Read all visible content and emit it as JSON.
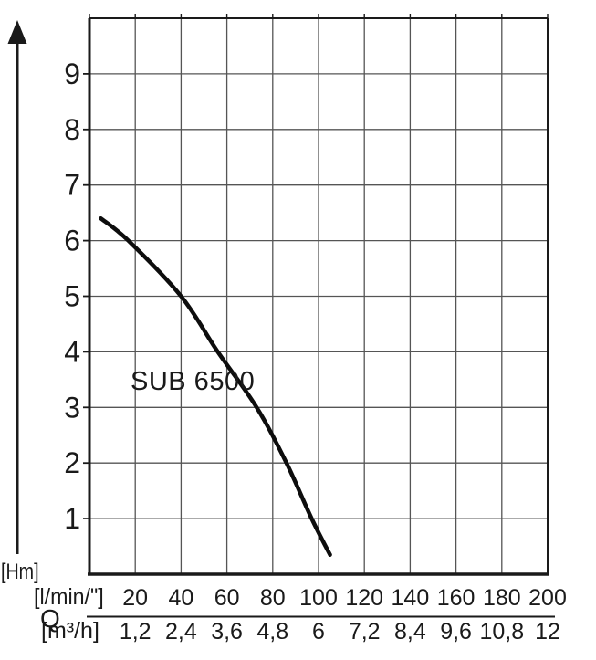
{
  "figure": {
    "curve_label": "SUB 6500",
    "y_unit": "[Hm]",
    "x_symbol": "Q",
    "x_unit_lmin": "[l/min/\"]",
    "x_unit_m3h": "[m³/h]"
  },
  "chart_data": {
    "type": "line",
    "title": "",
    "xlabel": "Q [l/min] / [m³/h]",
    "ylabel": "H [m]",
    "xlim": [
      0,
      200
    ],
    "ylim": [
      0,
      10
    ],
    "grid": true,
    "legend_position": "none",
    "x_ticks_lmin": [
      "20",
      "40",
      "60",
      "80",
      "100",
      "120",
      "140",
      "160",
      "180",
      "200"
    ],
    "x_tick_values_lmin": [
      20,
      40,
      60,
      80,
      100,
      120,
      140,
      160,
      180,
      200
    ],
    "x_ticks_m3h": [
      "1,2",
      "2,4",
      "3,6",
      "4,8",
      "6",
      "7,2",
      "8,4",
      "9,6",
      "10,8",
      "12"
    ],
    "y_ticks": [
      "1",
      "2",
      "3",
      "4",
      "5",
      "6",
      "7",
      "8",
      "9"
    ],
    "y_tick_values": [
      1,
      2,
      3,
      4,
      5,
      6,
      7,
      8,
      9
    ],
    "series": [
      {
        "name": "SUB 6500",
        "points_q_lmin_h_m": [
          [
            5,
            6.4
          ],
          [
            17,
            6.0
          ],
          [
            40,
            5.0
          ],
          [
            56,
            4.0
          ],
          [
            73,
            3.0
          ],
          [
            86,
            2.0
          ],
          [
            97,
            1.0
          ],
          [
            105,
            0.35
          ]
        ]
      }
    ]
  },
  "colors": {
    "background": "#ffffff",
    "curve": "#0d0d0d",
    "axis": "#1a1a1a",
    "grid": "#555555",
    "text": "#1a1a1a"
  }
}
